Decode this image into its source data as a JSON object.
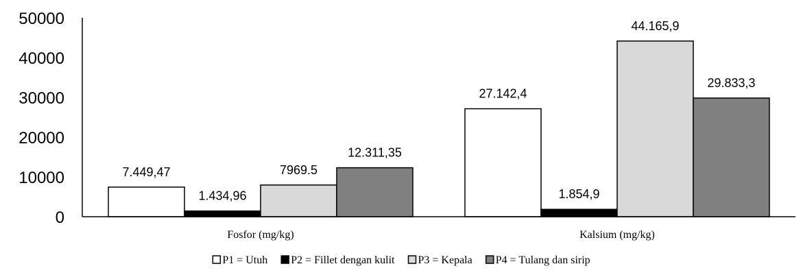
{
  "chart_data": {
    "type": "bar",
    "categories": [
      "Fosfor (mg/kg)",
      "Kalsium (mg/kg)"
    ],
    "series": [
      {
        "name": "P1 = Utuh",
        "values": [
          7449.47,
          27142.4
        ],
        "labels": [
          "7.449,47",
          "27.142,4"
        ],
        "color": "#ffffff"
      },
      {
        "name": "P2 = Fillet dengan kulit",
        "values": [
          1434.96,
          1854.9
        ],
        "labels": [
          "1.434,96",
          "1.854,9"
        ],
        "color": "#000000"
      },
      {
        "name": "P3 = Kepala",
        "values": [
          7969.5,
          44165.9
        ],
        "labels": [
          "7969.5",
          "44.165,9"
        ],
        "color": "#d9d9d9"
      },
      {
        "name": "P4 = Tulang dan sirip",
        "values": [
          12311.35,
          29833.3
        ],
        "labels": [
          "12.311,35",
          "29.833,3"
        ],
        "color": "#808080"
      }
    ],
    "yticks": [
      "0",
      "10000",
      "20000",
      "30000",
      "40000",
      "50000"
    ],
    "ylim": [
      0,
      50000
    ],
    "grid": false,
    "legend": "bottom"
  }
}
